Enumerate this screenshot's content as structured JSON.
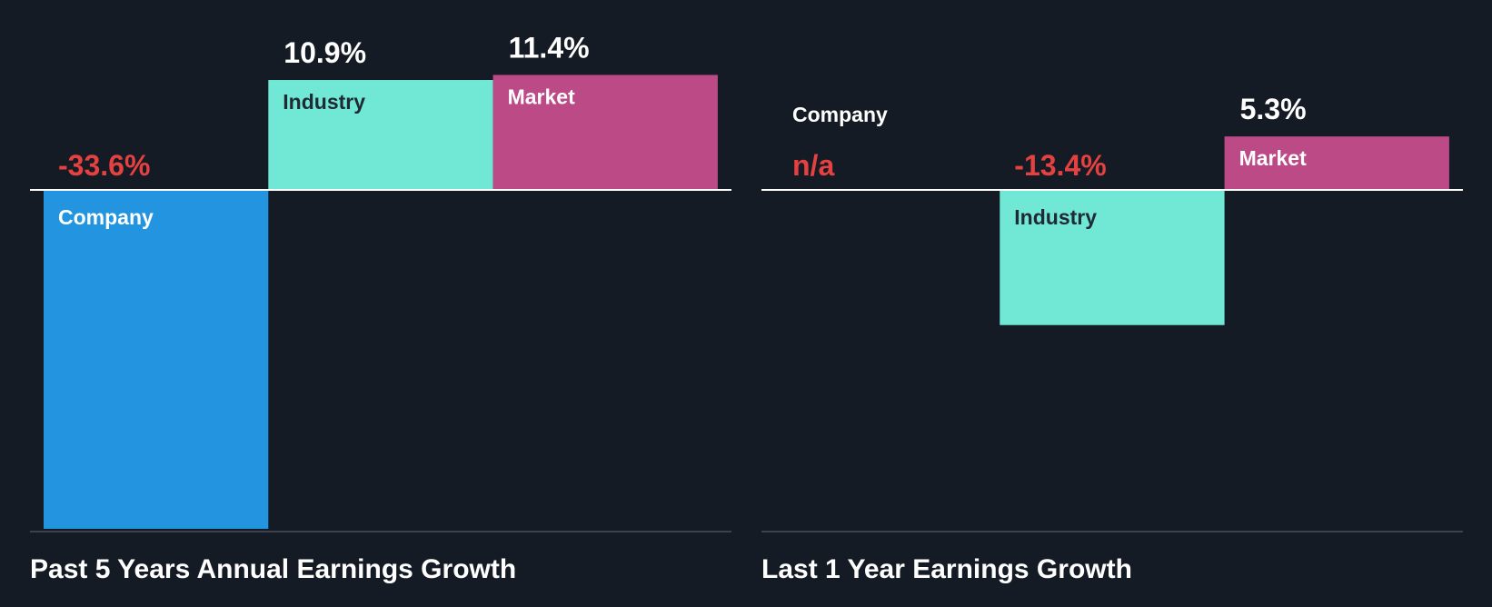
{
  "colors": {
    "background": "#151b24",
    "company": "#2394df",
    "industry": "#71e7d6",
    "market": "#bb4a87",
    "negative_value": "#e64141",
    "positive_value": "#ffffff",
    "label_on_dark": "#ffffff",
    "label_on_light": "#202a33",
    "zero_line": "#ffffff",
    "baseline": "#4a5059"
  },
  "chart_data": [
    {
      "type": "bar",
      "title": "Past 5 Years Annual Earnings Growth",
      "categories": [
        "Company",
        "Industry",
        "Market"
      ],
      "values": [
        -33.6,
        10.9,
        11.4
      ],
      "value_labels": [
        "-33.6%",
        "10.9%",
        "11.4%"
      ],
      "unit": "%",
      "xlabel": "",
      "ylabel": "",
      "ylim": [
        -33.6,
        11.4
      ],
      "grid": false
    },
    {
      "type": "bar",
      "title": "Last 1 Year Earnings Growth",
      "categories": [
        "Company",
        "Industry",
        "Market"
      ],
      "values": [
        null,
        -13.4,
        5.3
      ],
      "value_labels": [
        "n/a",
        "-13.4%",
        "5.3%"
      ],
      "unit": "%",
      "xlabel": "",
      "ylabel": "",
      "ylim": [
        -33.6,
        11.4
      ],
      "grid": false
    }
  ]
}
